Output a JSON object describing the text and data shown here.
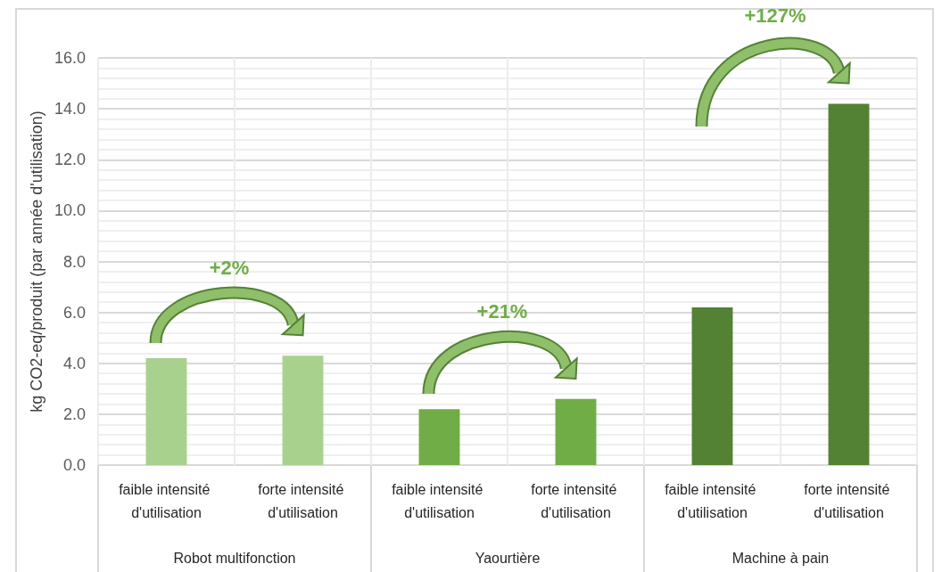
{
  "chart_data": {
    "type": "bar",
    "ylabel": "kg CO2-eq/produit (par année d'utilisation)",
    "categories": [
      "faible intensité d'utilisation",
      "forte intensité d'utilisation",
      "faible intensité d'utilisation",
      "forte intensité d'utilisation",
      "faible intensité d'utilisation",
      "forte intensité d'utilisation"
    ],
    "values": [
      4.2,
      4.3,
      2.2,
      2.6,
      6.2,
      14.2
    ],
    "colors": [
      "#a9d18e",
      "#a9d18e",
      "#70ad47",
      "#70ad47",
      "#548235",
      "#548235"
    ],
    "ylim": [
      0,
      16
    ],
    "yticks": [
      {
        "value": 0,
        "label": "0.0"
      },
      {
        "value": 2,
        "label": "2.0"
      },
      {
        "value": 4,
        "label": "4.0"
      },
      {
        "value": 6,
        "label": "6.0"
      },
      {
        "value": 8,
        "label": "8.0"
      },
      {
        "value": 10,
        "label": "10.0"
      },
      {
        "value": 12,
        "label": "12.0"
      },
      {
        "value": 14,
        "label": "14.0"
      },
      {
        "value": 16,
        "label": "16.0"
      }
    ],
    "grid": true,
    "annotations": [
      "Robot multifonction",
      "Yaourtière",
      "Machine à pain",
      "+2%",
      "+21%",
      "+127%"
    ]
  }
}
